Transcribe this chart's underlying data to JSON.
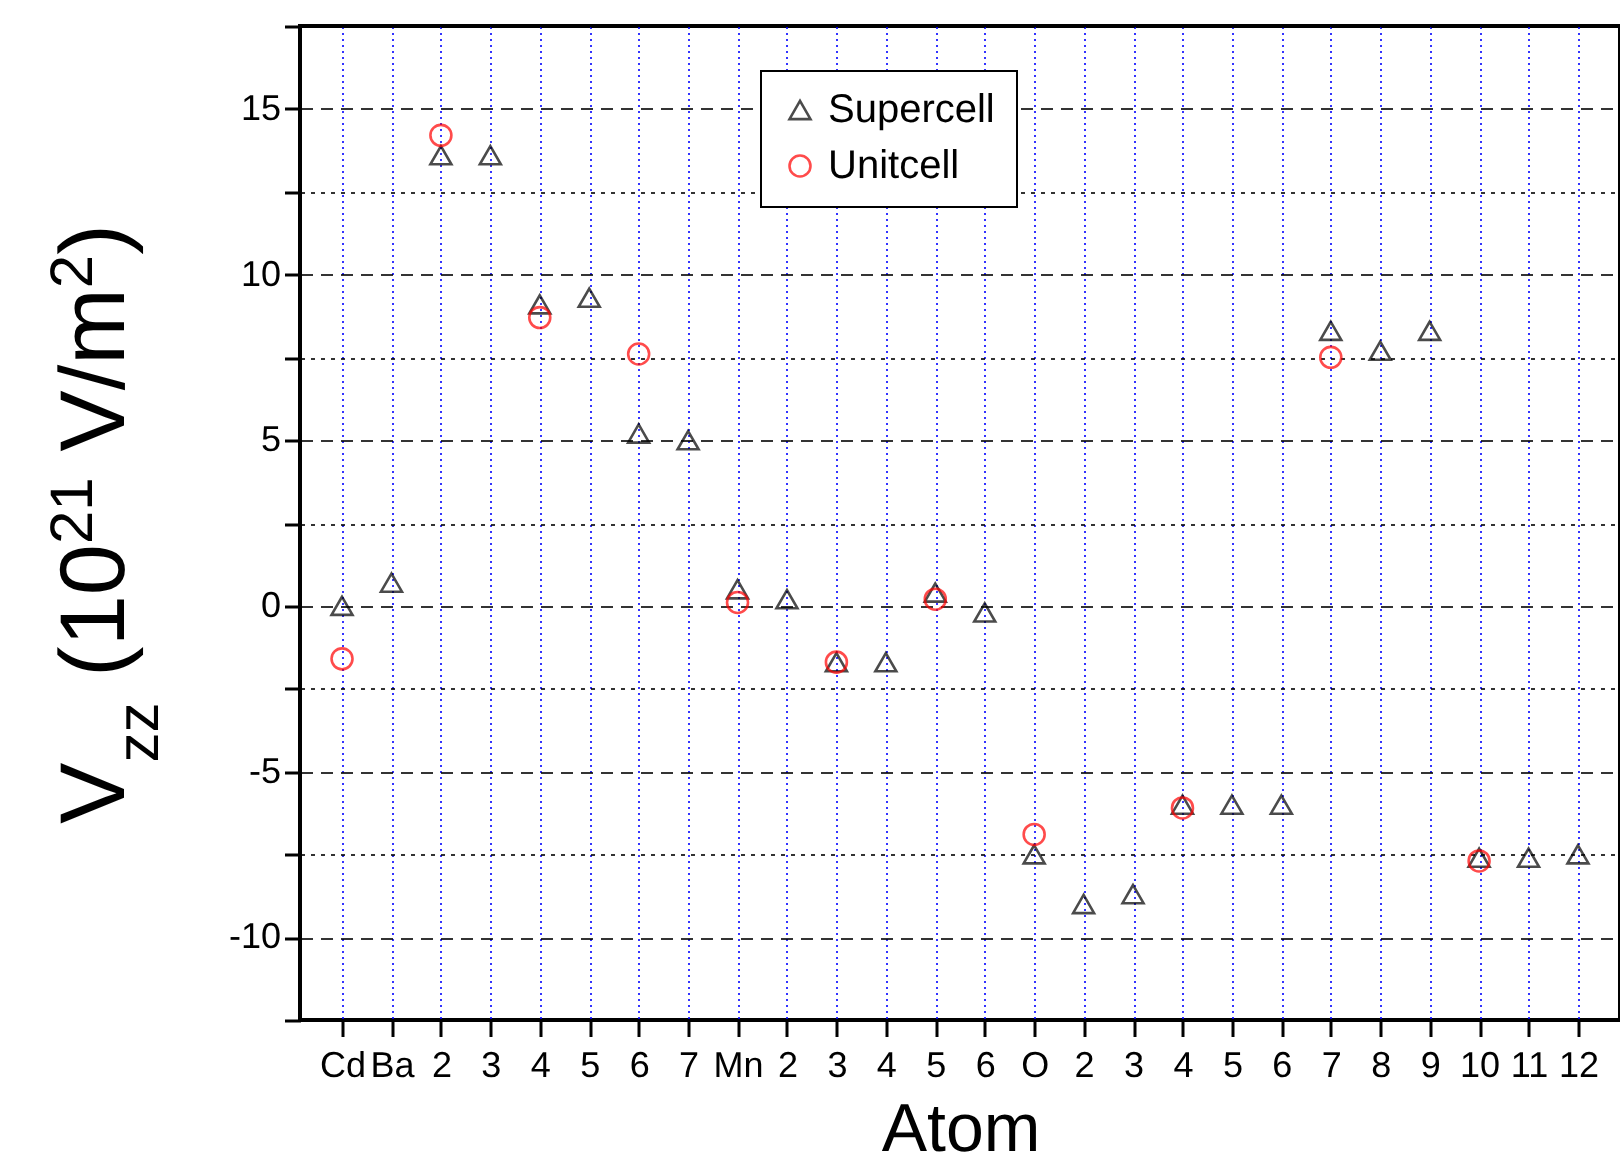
{
  "chart_data": {
    "type": "scatter",
    "xlabel": "Atom",
    "ylabel": "V$_{zz}$ (10$^{21}$ V/m$^{2}$)",
    "categories": [
      "Cd",
      "Ba",
      "2",
      "3",
      "4",
      "5",
      "6",
      "7",
      "Mn",
      "2",
      "3",
      "4",
      "5",
      "6",
      "O",
      "2",
      "3",
      "4",
      "5",
      "6",
      "7",
      "8",
      "9",
      "10",
      "11",
      "12"
    ],
    "series": [
      {
        "name": "Supercell",
        "color": "#000000",
        "marker": "triangle",
        "values": [
          0.0,
          0.7,
          13.6,
          13.6,
          9.1,
          9.3,
          5.2,
          5.0,
          0.5,
          0.2,
          -1.7,
          -1.7,
          0.4,
          -0.2,
          -7.5,
          -9.0,
          -8.7,
          -6.0,
          -6.0,
          -6.0,
          8.3,
          7.7,
          8.3,
          -7.6,
          -7.6,
          -7.5
        ]
      },
      {
        "name": "Unitcell",
        "color": "#ff0000",
        "marker": "circle",
        "values": [
          -1.6,
          null,
          14.2,
          null,
          8.7,
          null,
          7.6,
          null,
          0.1,
          null,
          -1.7,
          null,
          0.2,
          null,
          -6.9,
          null,
          null,
          -6.1,
          null,
          null,
          7.5,
          null,
          null,
          -7.7,
          null,
          null
        ]
      }
    ],
    "ylim": [
      -12.5,
      17.5
    ],
    "yticks": [
      {
        "value": -12.5,
        "label": null
      },
      -10,
      {
        "value": -7.5,
        "label": null
      },
      -5,
      {
        "value": -2.5,
        "label": null
      },
      0,
      {
        "value": 2.5,
        "label": null
      },
      5,
      {
        "value": 7.5,
        "label": null
      },
      10,
      {
        "value": 12.5,
        "label": null
      },
      15,
      {
        "value": 17.5,
        "label": null
      }
    ],
    "grid": true,
    "legend": "top"
  }
}
